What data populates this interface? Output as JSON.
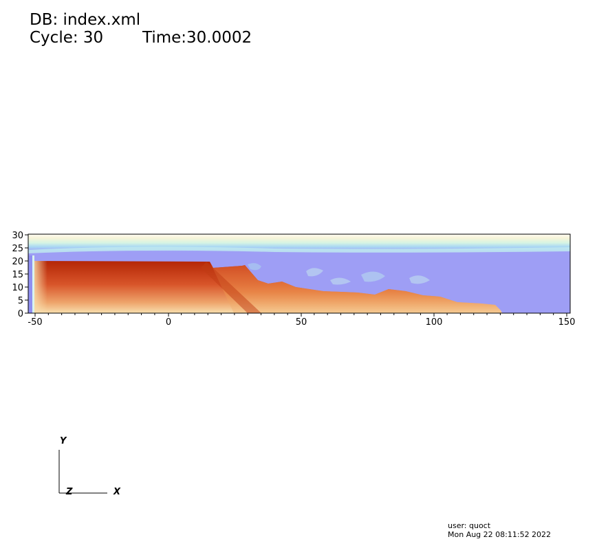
{
  "header": {
    "db_label": "DB: index.xml",
    "cycle_label": "Cycle: 30",
    "time_label": "Time:30.0002"
  },
  "plot": {
    "x_ticks": [
      "-50",
      "0",
      "50",
      "100",
      "150"
    ],
    "y_ticks": [
      "0",
      "5",
      "10",
      "15",
      "20",
      "25",
      "30"
    ],
    "colors": {
      "water": "#9e9ef5",
      "sediment_dark": "#b62808",
      "sediment_mid": "#e07a3a",
      "sediment_light": "#f6d6a0",
      "surface_band": "#c8f0e0"
    }
  },
  "triad": {
    "y_label": "Y",
    "z_label": "Z",
    "x_label": "X"
  },
  "footer": {
    "user": "user: quoct",
    "date": "Mon Aug 22 08:11:52 2022"
  }
}
